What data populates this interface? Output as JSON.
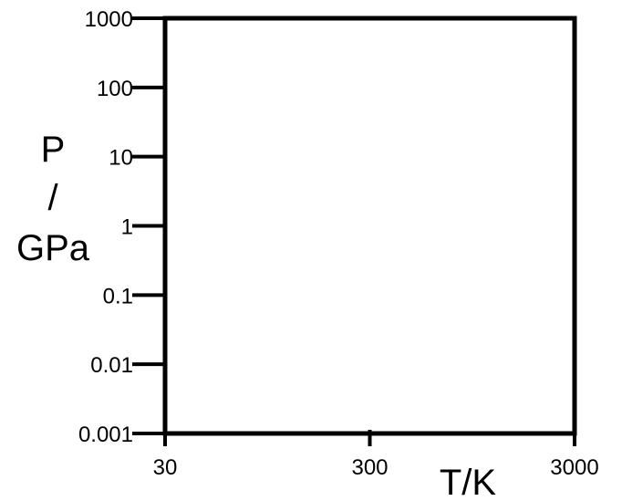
{
  "chart_data": {
    "type": "scatter",
    "title": "",
    "xlabel": "T/K",
    "ylabel_lines": [
      "P",
      "/",
      "GPa"
    ],
    "x_scale": "log",
    "y_scale": "log",
    "xlim": [
      30,
      3000
    ],
    "ylim": [
      0.001,
      1000
    ],
    "x_ticks": [
      {
        "value": 30,
        "label": "30"
      },
      {
        "value": 300,
        "label": "300"
      },
      {
        "value": 3000,
        "label": "3000"
      }
    ],
    "y_ticks": [
      {
        "value": 0.001,
        "label": "0.001"
      },
      {
        "value": 0.01,
        "label": "0.01"
      },
      {
        "value": 0.1,
        "label": "0.1"
      },
      {
        "value": 1,
        "label": "1"
      },
      {
        "value": 10,
        "label": "10"
      },
      {
        "value": 100,
        "label": "100"
      },
      {
        "value": 1000,
        "label": "1000"
      }
    ],
    "series": [],
    "grid": false,
    "legend": "none"
  }
}
